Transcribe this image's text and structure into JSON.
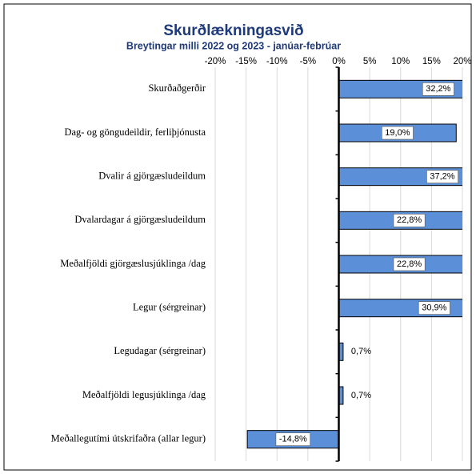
{
  "chart_data": {
    "type": "bar",
    "orientation": "horizontal",
    "title": "Skurðlækningasvið",
    "subtitle": "Breytingar milli 2022 og 2023 - janúar-febrúar",
    "categories": [
      "Skurðaðgerðir",
      "Dag- og göngudeildir, ferliþjónusta",
      "Dvalir á gjörgæsludeildum",
      "Dvalardagar á gjörgæsludeildum",
      "Meðalfjöldi gjörgæslusjúklinga /dag",
      "Legur (sérgreinar)",
      "Legudagar (sérgreinar)",
      "Meðalfjöldi legusjúklinga /dag",
      "Meðallegutími útskrifaðra (allar legur)"
    ],
    "values": [
      32.2,
      19.0,
      37.2,
      22.8,
      22.8,
      30.9,
      0.7,
      0.7,
      -14.8
    ],
    "value_labels": [
      "32,2%",
      "19,0%",
      "37,2%",
      "22,8%",
      "22,8%",
      "30,9%",
      "0,7%",
      "0,7%",
      "-14,8%"
    ],
    "color": "#5b8fd8",
    "xlim": [
      -20,
      20
    ],
    "xticks": [
      {
        "value": -20,
        "label": "-20%"
      },
      {
        "value": -15,
        "label": "-15%"
      },
      {
        "value": -10,
        "label": "-10%"
      },
      {
        "value": -5,
        "label": "-5%"
      },
      {
        "value": 0,
        "label": "0%"
      },
      {
        "value": 5,
        "label": "5%"
      },
      {
        "value": 10,
        "label": "10%"
      },
      {
        "value": 15,
        "label": "15%"
      },
      {
        "value": 20,
        "label": "20%"
      }
    ],
    "grid": true
  }
}
